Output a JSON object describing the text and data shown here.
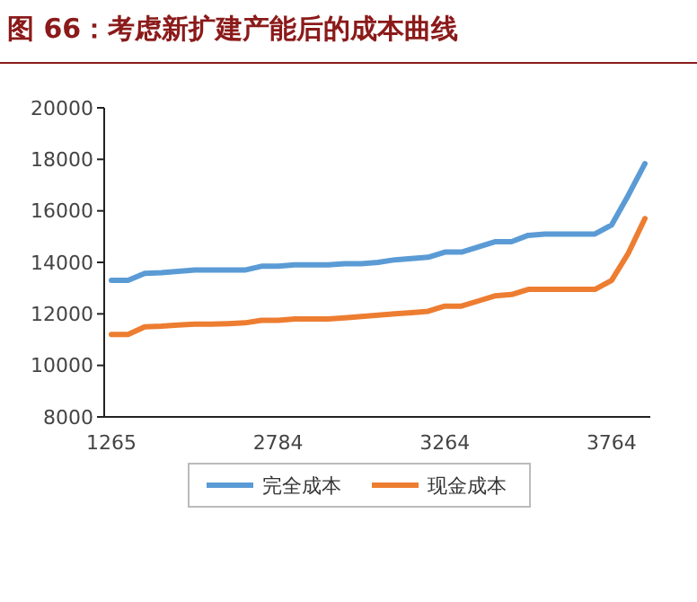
{
  "chart_data": {
    "type": "line",
    "title": "图 66：考虑新扩建产能后的成本曲线",
    "categories": [
      "1265",
      null,
      null,
      null,
      null,
      null,
      null,
      null,
      null,
      null,
      "2784",
      null,
      null,
      null,
      null,
      null,
      null,
      null,
      null,
      null,
      "3264",
      null,
      null,
      null,
      null,
      null,
      null,
      null,
      null,
      null,
      "3764",
      null,
      null
    ],
    "series": [
      {
        "name": "完全成本",
        "color": "#5b9bd5",
        "values": [
          13300,
          13300,
          13570,
          13600,
          13650,
          13700,
          13700,
          13700,
          13700,
          13850,
          13850,
          13900,
          13900,
          13900,
          13950,
          13950,
          14000,
          14100,
          14150,
          14200,
          14400,
          14400,
          14600,
          14800,
          14800,
          15050,
          15100,
          15100,
          15100,
          15100,
          15450,
          16600,
          17830
        ]
      },
      {
        "name": "现金成本",
        "color": "#ed7d31",
        "values": [
          11200,
          11200,
          11500,
          11520,
          11570,
          11600,
          11600,
          11620,
          11650,
          11750,
          11750,
          11800,
          11800,
          11800,
          11850,
          11900,
          11950,
          12000,
          12050,
          12100,
          12300,
          12300,
          12500,
          12700,
          12750,
          12950,
          12950,
          12950,
          12950,
          12950,
          13300,
          14350,
          15700
        ]
      }
    ],
    "ylim": [
      8000,
      20000
    ],
    "yticks": [
      8000,
      10000,
      12000,
      14000,
      16000,
      18000,
      20000
    ],
    "grid": false,
    "legend": "bottom",
    "marker": "none",
    "line_style": "solid"
  }
}
